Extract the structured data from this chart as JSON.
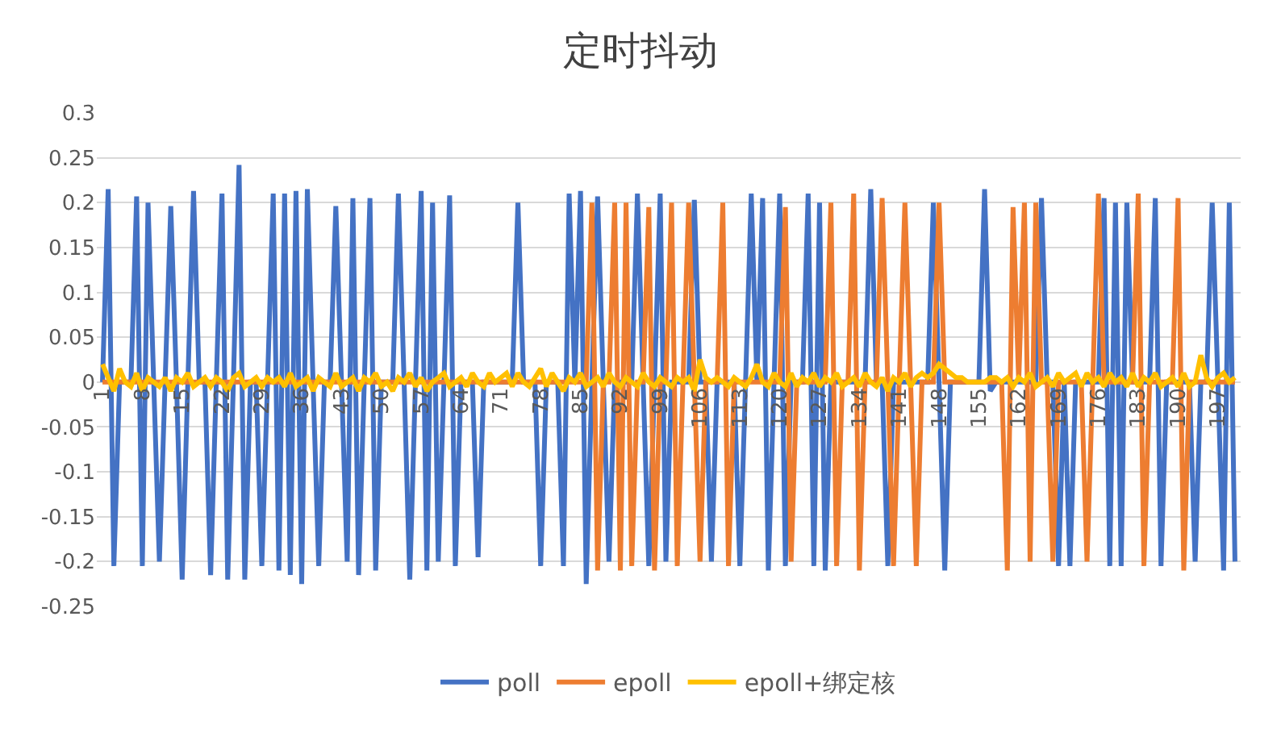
{
  "chart_data": {
    "type": "line",
    "title": "定时抖动",
    "categories": [
      "1",
      null,
      null,
      null,
      null,
      null,
      null,
      "8",
      null,
      null,
      null,
      null,
      null,
      null,
      "15",
      null,
      null,
      null,
      null,
      null,
      null,
      "22",
      null,
      null,
      null,
      null,
      null,
      null,
      "29",
      null,
      null,
      null,
      null,
      null,
      null,
      "36",
      null,
      null,
      null,
      null,
      null,
      null,
      "43",
      null,
      null,
      null,
      null,
      null,
      null,
      "50",
      null,
      null,
      null,
      null,
      null,
      null,
      "57",
      null,
      null,
      null,
      null,
      null,
      null,
      "64",
      null,
      null,
      null,
      null,
      null,
      null,
      "71",
      null,
      null,
      null,
      null,
      null,
      null,
      "78",
      null,
      null,
      null,
      null,
      null,
      null,
      "85",
      null,
      null,
      null,
      null,
      null,
      null,
      "92",
      null,
      null,
      null,
      null,
      null,
      null,
      "99",
      null,
      null,
      null,
      null,
      null,
      null,
      "106",
      null,
      null,
      null,
      null,
      null,
      null,
      "113",
      null,
      null,
      null,
      null,
      null,
      null,
      "120",
      null,
      null,
      null,
      null,
      null,
      null,
      "127",
      null,
      null,
      null,
      null,
      null,
      null,
      "134",
      null,
      null,
      null,
      null,
      null,
      null,
      "141",
      null,
      null,
      null,
      null,
      null,
      null,
      "148",
      null,
      null,
      null,
      null,
      null,
      null,
      "155",
      null,
      null,
      null,
      null,
      null,
      null,
      "162",
      null,
      null,
      null,
      null,
      null,
      null,
      "169",
      null,
      null,
      null,
      null,
      null,
      null,
      "176",
      null,
      null,
      null,
      null,
      null,
      null,
      "183",
      null,
      null,
      null,
      null,
      null,
      null,
      "190",
      null,
      null,
      null,
      null,
      null,
      null,
      "197",
      null,
      null,
      null
    ],
    "series": [
      {
        "name": "poll",
        "color": "#4472c4",
        "values": [
          0,
          0.215,
          -0.205,
          0,
          0,
          0,
          0.207,
          -0.205,
          0.2,
          0,
          -0.2,
          0,
          0.196,
          0,
          -0.22,
          0,
          0.213,
          0,
          0,
          -0.215,
          0,
          0.21,
          -0.22,
          0,
          0.242,
          -0.22,
          0,
          0,
          -0.205,
          0,
          0.21,
          -0.21,
          0.21,
          -0.215,
          0.213,
          -0.225,
          0.215,
          0,
          -0.205,
          0,
          0,
          0.196,
          0,
          -0.2,
          0.205,
          -0.215,
          0,
          0.205,
          -0.21,
          0,
          0,
          0,
          0.21,
          0,
          -0.22,
          0,
          0.213,
          -0.21,
          0.2,
          -0.2,
          0,
          0.208,
          -0.205,
          0,
          0,
          0,
          -0.195,
          0,
          0,
          0,
          0,
          0,
          0,
          0.2,
          0,
          0,
          0,
          -0.205,
          0,
          0,
          0,
          -0.205,
          0.21,
          0,
          0.213,
          -0.225,
          0,
          0.207,
          0,
          -0.2,
          0,
          0,
          0,
          0,
          0.21,
          0,
          -0.205,
          0,
          0.21,
          -0.2,
          0,
          0,
          0,
          0,
          0.203,
          0,
          0,
          -0.2,
          0,
          0,
          0,
          0,
          -0.205,
          0,
          0.21,
          0,
          0.205,
          -0.21,
          0,
          0.21,
          -0.205,
          0,
          0,
          0,
          0.21,
          -0.205,
          0.2,
          -0.21,
          0,
          0,
          0,
          0,
          0,
          0,
          0,
          0.215,
          0,
          0,
          -0.205,
          0,
          0,
          0,
          0,
          0,
          0,
          0,
          0.2,
          0,
          -0.21,
          0,
          0,
          0,
          0,
          0,
          0,
          0.215,
          -0.01,
          0,
          0,
          0,
          0,
          0,
          0,
          0,
          0,
          0.205,
          0,
          0,
          -0.205,
          0,
          -0.205,
          0,
          0,
          0,
          0,
          0,
          0.205,
          -0.205,
          0.2,
          -0.205,
          0.2,
          0,
          0,
          0,
          0,
          0.205,
          -0.205,
          0,
          0,
          0,
          0,
          0,
          -0.2,
          0,
          0,
          0.2,
          0,
          -0.21,
          0.2,
          -0.2
        ]
      },
      {
        "name": "epoll",
        "color": "#ed7d31",
        "values": [
          0,
          0,
          0,
          0,
          0,
          0,
          0,
          0,
          0,
          0,
          0,
          0,
          0,
          0,
          0,
          0,
          0,
          0,
          0,
          0,
          0,
          0,
          0,
          0,
          0,
          0,
          0,
          0,
          0,
          0,
          0,
          0,
          0,
          0,
          0,
          0,
          0,
          0,
          0,
          0,
          0,
          0,
          0,
          0,
          0,
          0,
          0,
          0,
          0,
          0,
          0,
          0,
          0,
          0,
          0,
          0,
          0,
          0,
          0,
          0,
          0,
          0,
          0,
          0,
          0,
          0,
          0,
          0,
          0,
          0,
          0,
          0,
          0,
          0,
          0,
          0,
          0,
          0,
          0,
          0,
          0,
          0,
          0,
          0,
          0,
          0,
          0.2,
          -0.21,
          0,
          0,
          0.2,
          -0.21,
          0.2,
          -0.205,
          0,
          0,
          0.195,
          -0.21,
          0,
          0,
          0.2,
          -0.205,
          0,
          0.2,
          0,
          -0.2,
          0,
          0,
          0,
          0.2,
          -0.205,
          0,
          0,
          0,
          0,
          0,
          0,
          0,
          0,
          0,
          0.195,
          -0.2,
          0,
          0,
          0,
          0,
          0,
          0,
          0.2,
          -0.205,
          0,
          0,
          0.21,
          -0.21,
          0,
          0,
          0,
          0.205,
          0,
          -0.205,
          0,
          0.2,
          0,
          -0.205,
          0,
          0,
          0,
          0.2,
          0,
          0,
          0,
          0,
          0,
          0,
          0,
          0,
          0,
          0,
          0,
          -0.21,
          0.195,
          0,
          0.2,
          -0.2,
          0.2,
          0,
          0,
          -0.2,
          0,
          0,
          0,
          0,
          0,
          -0.2,
          0,
          0.21,
          0,
          0,
          0,
          0,
          0,
          0,
          0.21,
          -0.205,
          0,
          0,
          0,
          0,
          0,
          0.205,
          -0.21,
          0,
          0,
          0,
          0,
          0,
          0,
          0,
          0,
          0
        ]
      },
      {
        "name": "epoll+绑定核",
        "color": "#ffc000",
        "values": [
          0.02,
          0.005,
          -0.01,
          0.015,
          0,
          -0.005,
          0.01,
          -0.01,
          0.005,
          0,
          -0.005,
          0.005,
          -0.01,
          0.005,
          0,
          0.01,
          -0.005,
          0,
          0.005,
          -0.005,
          0.005,
          0,
          -0.01,
          0.005,
          0.01,
          -0.005,
          0,
          0.005,
          -0.005,
          0.005,
          0,
          0.005,
          -0.005,
          0.01,
          -0.005,
          0,
          0.005,
          -0.01,
          0.005,
          0,
          -0.005,
          0.01,
          -0.005,
          0,
          0.005,
          -0.01,
          0.005,
          0,
          0.01,
          -0.005,
          0,
          -0.01,
          0.005,
          0,
          0.01,
          -0.005,
          0.005,
          -0.01,
          0,
          0.005,
          0.01,
          -0.005,
          0,
          0.005,
          -0.005,
          0.01,
          0,
          -0.005,
          0.01,
          0,
          0.005,
          0.01,
          -0.005,
          0.01,
          0,
          -0.005,
          0.005,
          0.015,
          -0.005,
          0.01,
          0,
          -0.01,
          0.005,
          0,
          0.01,
          -0.005,
          0,
          0.005,
          -0.005,
          0.01,
          0,
          -0.005,
          0.005,
          0,
          -0.005,
          0.01,
          0,
          -0.005,
          0.005,
          0,
          -0.005,
          0.005,
          0,
          0.005,
          -0.01,
          0.025,
          0.005,
          0,
          0.005,
          0,
          -0.005,
          0.005,
          0,
          -0.005,
          0.005,
          0.02,
          0,
          -0.005,
          0.01,
          0,
          -0.005,
          0.01,
          -0.005,
          0.005,
          0,
          0.01,
          -0.005,
          0.005,
          0,
          0.01,
          -0.005,
          0,
          0.005,
          -0.005,
          0.01,
          0,
          -0.005,
          0.005,
          -0.01,
          0.005,
          0,
          0.01,
          -0.005,
          0.005,
          0.01,
          0.005,
          0.01,
          0.02,
          0.015,
          0.01,
          0.005,
          0.005,
          0,
          0,
          0,
          0,
          0.005,
          0.005,
          0,
          0.005,
          -0.005,
          0.005,
          0,
          0.01,
          -0.005,
          0,
          0.005,
          -0.005,
          0.01,
          0,
          0.005,
          0.01,
          -0.005,
          0.01,
          0,
          0.005,
          -0.005,
          0.01,
          0,
          0.005,
          -0.005,
          0.01,
          -0.005,
          0.005,
          0,
          0.01,
          -0.005,
          0,
          0.005,
          -0.005,
          0.01,
          -0.005,
          0,
          0.03,
          0.005,
          -0.005,
          0.005,
          0.01,
          0,
          0.005
        ]
      }
    ],
    "ylim": [
      -0.25,
      0.3
    ],
    "yticks": [
      -0.25,
      -0.2,
      -0.15,
      -0.1,
      -0.05,
      0,
      0.05,
      0.1,
      0.15,
      0.2,
      0.25,
      0.3
    ],
    "grid": "y",
    "legend": "bottom",
    "marker": "none",
    "line_style": "solid"
  }
}
